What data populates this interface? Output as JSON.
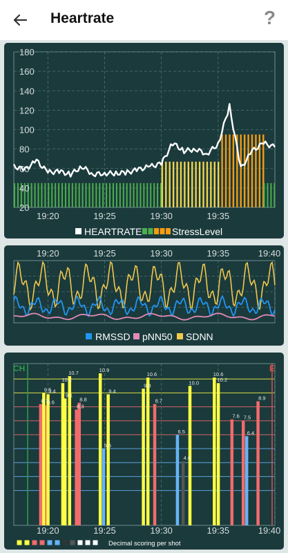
{
  "app": {
    "title": "Heartrate",
    "help_icon": "?",
    "back_icon": "arrow-left-icon"
  },
  "colors": {
    "panel": "#1b3a3c",
    "heartrate": "#ffffff",
    "stress_low": "#4cae4c",
    "stress_mid": "#f2d34b",
    "stress_high": "#f39c12",
    "rmssd": "#2196f3",
    "pnn50": "#e38ab6",
    "sdnn": "#f2c94c",
    "score_yellow": "#ffff44",
    "score_red": "#f26b6b",
    "score_blue": "#64b5f6",
    "score_dark": "#555555"
  },
  "chart_data": [
    {
      "type": "line",
      "ylim": [
        20,
        180
      ],
      "yticks": [
        "180",
        "160",
        "140",
        "120",
        "100",
        "80",
        "60",
        "40",
        "20"
      ],
      "xticks": [
        "19:20",
        "19:25",
        "19:30",
        "19:35"
      ],
      "series": [
        {
          "name": "HEARTRATE",
          "color": "#ffffff",
          "x": [
            "19:17",
            "19:18",
            "19:19",
            "19:20",
            "19:21",
            "19:22",
            "19:23",
            "19:24",
            "19:25",
            "19:26",
            "19:27",
            "19:28",
            "19:29",
            "19:30",
            "19:31",
            "19:32",
            "19:33",
            "19:34",
            "19:35",
            "19:36",
            "19:37",
            "19:38",
            "19:39",
            "19:40"
          ],
          "values": [
            62,
            59,
            68,
            56,
            57,
            54,
            62,
            54,
            55,
            55,
            56,
            59,
            62,
            65,
            86,
            78,
            80,
            75,
            85,
            124,
            60,
            78,
            86,
            82
          ]
        }
      ],
      "bars": {
        "name": "StressLevel",
        "legend_colors": [
          "#4cae4c",
          "#4cae4c",
          "#f39c12",
          "#f39c12",
          "#f39c12"
        ],
        "categories": [
          "19:17-19:29",
          "19:30",
          "19:31",
          "19:32",
          "19:33",
          "19:34",
          "19:35",
          "19:36",
          "19:37",
          "19:38",
          "19:39"
        ],
        "values": [
          45,
          67,
          67,
          67,
          67,
          67,
          95,
          95,
          95,
          95,
          45
        ]
      },
      "legend": [
        "HEARTRATE",
        "StressLevel"
      ]
    },
    {
      "type": "line",
      "xticks": [
        "19:20",
        "19:25",
        "19:30",
        "19:35",
        "19:40"
      ],
      "series": [
        {
          "name": "RMSSD",
          "color": "#2196f3"
        },
        {
          "name": "pNN50",
          "color": "#e38ab6"
        },
        {
          "name": "SDNN",
          "color": "#f2c94c"
        }
      ],
      "legend": [
        "RMSSD",
        "pNN50",
        "SDNN"
      ]
    },
    {
      "type": "bar",
      "corner_labels": [
        "CH",
        "E"
      ],
      "xticks": [
        "19:20",
        "19:25",
        "19:30",
        "19:35",
        "19:40"
      ],
      "ylim": [
        0,
        11.6
      ],
      "values": [
        8.7,
        9.5,
        8.6,
        9.4,
        10.2,
        9.1,
        10.7,
        8.3,
        8.8,
        10.9,
        5.5,
        9.4,
        9.8,
        10.6,
        8.7,
        6.5,
        4.6,
        10.0,
        10.6,
        10.2,
        7.6,
        7.5,
        6.4,
        8.9
      ],
      "labels": [
        "8.7",
        "9.5",
        "8.6",
        "9.4",
        "10.2",
        "9.1",
        "10.7",
        "8.3",
        "8.8",
        "10.9",
        "5.5",
        "9.4",
        "9.8",
        "10.6",
        "8.7",
        "6.5",
        "4.6",
        "10.0",
        "10.6",
        "10.2",
        "7.6",
        "7.5",
        "6.4",
        "8.9"
      ],
      "legend": "Decimal scoring per shot"
    }
  ]
}
